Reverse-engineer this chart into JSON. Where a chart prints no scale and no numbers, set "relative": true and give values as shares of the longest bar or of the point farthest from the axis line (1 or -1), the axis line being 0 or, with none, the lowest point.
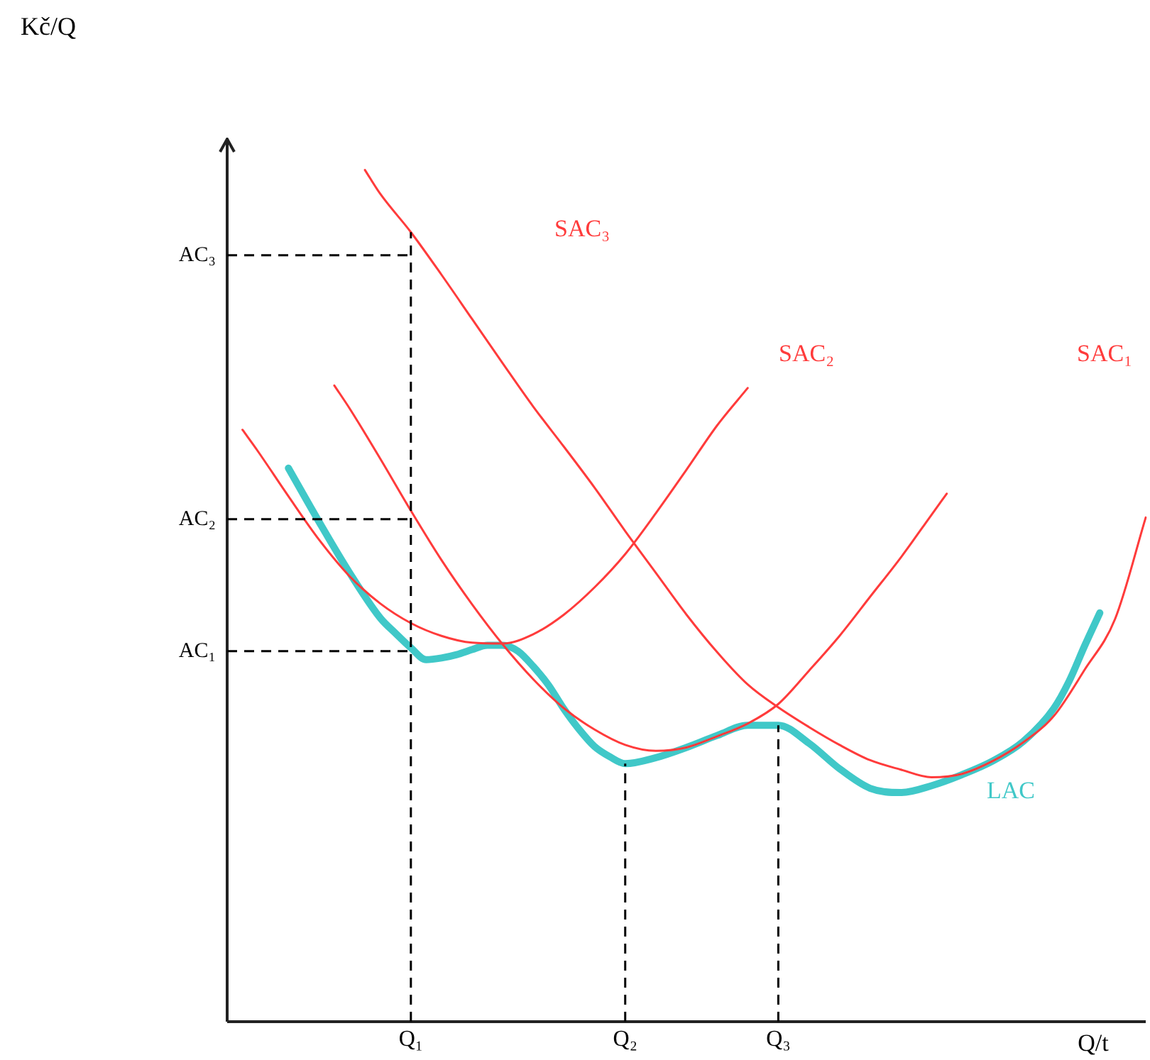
{
  "chart_data": {
    "type": "line",
    "relative": true,
    "xlabel": "Q/t",
    "marker": "none",
    "categories": [
      null,
      null,
      null,
      null,
      null,
      null,
      null,
      null,
      null,
      null,
      null,
      null,
      "Q₁",
      null,
      null,
      null,
      null,
      null,
      null,
      null,
      null,
      null,
      null,
      null,
      null,
      null,
      "Q₂",
      null,
      null,
      null,
      null,
      null,
      null,
      null,
      null,
      null,
      "Q₃",
      null,
      null,
      null,
      null,
      null,
      null,
      null,
      null,
      null,
      null,
      null,
      null,
      null,
      null,
      null,
      null,
      null,
      null,
      null,
      null,
      null,
      null,
      null,
      null
    ],
    "annotations": [
      "SAC₃",
      "SAC₂",
      "SAC₁",
      "LAC",
      "Kč/Q"
    ],
    "ref_lines": [
      {
        "axis": "y",
        "value": 0.9,
        "label": "AC₃",
        "color": "#000000",
        "line_style": "dashed"
      },
      {
        "axis": "y",
        "value": 0.59,
        "label": "AC₂",
        "color": "#000000",
        "line_style": "dashed"
      },
      {
        "axis": "y",
        "value": 0.435,
        "label": "AC₁",
        "color": "#000000",
        "line_style": "dashed"
      },
      {
        "axis": "x",
        "value": "Q₁",
        "color": "#000000",
        "line_style": "dashed"
      },
      {
        "axis": "x",
        "value": "Q₂",
        "color": "#000000",
        "line_style": "dashed"
      },
      {
        "axis": "x",
        "value": "Q₃",
        "color": "#000000",
        "line_style": "dashed"
      }
    ],
    "series": [
      {
        "color": "#ff3b3b",
        "values": [
          null,
          0.695,
          0.67,
          null,
          0.617,
          null,
          0.566,
          null,
          0.523,
          null,
          0.491,
          null,
          0.468,
          null,
          0.453,
          null,
          0.445,
          null,
          0.444,
          null,
          0.455,
          null,
          0.478,
          null,
          0.51,
          null,
          0.549,
          null,
          0.597,
          null,
          0.648,
          null,
          0.7,
          null,
          0.744,
          null,
          null,
          null,
          null,
          null,
          null,
          null,
          null,
          null,
          null,
          null,
          null,
          null,
          null,
          null,
          null,
          null,
          null,
          null,
          null,
          null,
          null,
          null,
          null,
          null,
          null
        ]
      },
      {
        "color": "#ff3b3b",
        "values": [
          null,
          null,
          null,
          null,
          null,
          null,
          null,
          0.747,
          0.72,
          null,
          0.661,
          null,
          0.6,
          null,
          0.542,
          null,
          0.49,
          null,
          0.443,
          null,
          0.402,
          null,
          0.368,
          null,
          0.343,
          null,
          0.325,
          null,
          0.318,
          null,
          0.322,
          null,
          0.335,
          null,
          0.35,
          null,
          0.373,
          null,
          0.412,
          null,
          0.453,
          null,
          0.499,
          null,
          0.545,
          null,
          0.595,
          0.62,
          null,
          null,
          null,
          null,
          null,
          null,
          null,
          null,
          null,
          null,
          null,
          null,
          null
        ]
      },
      {
        "color": "#ff3b3b",
        "values": [
          null,
          null,
          null,
          null,
          null,
          null,
          null,
          null,
          null,
          1,
          0.972,
          null,
          0.927,
          null,
          0.877,
          null,
          0.825,
          null,
          0.773,
          null,
          0.722,
          null,
          0.675,
          null,
          0.627,
          null,
          0.576,
          null,
          0.527,
          null,
          0.478,
          null,
          0.434,
          null,
          0.396,
          null,
          0.369,
          null,
          0.346,
          null,
          0.325,
          null,
          0.307,
          null,
          0.296,
          null,
          0.287,
          null,
          0.291,
          null,
          0.306,
          null,
          0.328,
          null,
          0.359,
          null,
          0.413,
          null,
          0.473,
          null,
          0.592
        ]
      },
      {
        "color": "#40c8c8",
        "values": [
          null,
          null,
          null,
          null,
          0.65,
          null,
          0.587,
          null,
          0.527,
          null,
          0.474,
          0.456,
          0.439,
          0.425,
          0.427,
          0.431,
          0.437,
          0.442,
          0.442,
          0.435,
          0.417,
          0.395,
          0.367,
          0.343,
          0.323,
          0.311,
          0.303,
          null,
          0.31,
          null,
          0.322,
          null,
          0.336,
          null,
          0.348,
          null,
          0.348,
          null,
          0.327,
          null,
          0.297,
          null,
          0.274,
          null,
          0.269,
          null,
          0.277,
          null,
          0.29,
          null,
          0.306,
          null,
          0.329,
          null,
          0.368,
          0.4,
          0.441,
          0.48,
          null,
          null,
          null
        ]
      }
    ]
  }
}
